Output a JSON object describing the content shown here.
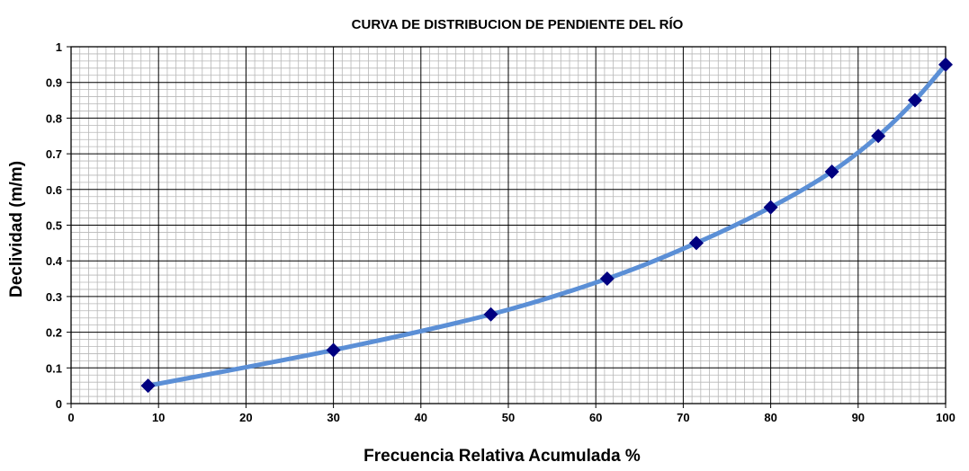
{
  "chart_data": {
    "type": "line",
    "title": "CURVA DE DISTRIBUCION DE PENDIENTE DEL RÍO",
    "xlabel": "Frecuencia Relativa Acumulada %",
    "ylabel": "Declividad (m/m)",
    "xlim": [
      0,
      100
    ],
    "ylim": [
      0,
      1
    ],
    "xticks": [
      0,
      10,
      20,
      30,
      40,
      50,
      60,
      70,
      80,
      90,
      100
    ],
    "yticks": [
      0,
      0.1,
      0.2,
      0.3,
      0.4,
      0.5,
      0.6,
      0.7,
      0.8,
      0.9,
      1
    ],
    "xtick_labels": [
      "0",
      "10",
      "20",
      "30",
      "40",
      "50",
      "60",
      "70",
      "80",
      "90",
      "100"
    ],
    "ytick_labels": [
      "0",
      "0.1",
      "0.2",
      "0.3",
      "0.4",
      "0.5",
      "0.6",
      "0.7",
      "0.8",
      "0.9",
      "1"
    ],
    "grid": true,
    "legend": "none",
    "series": [
      {
        "x": [
          8.8,
          30.0,
          48.0,
          61.3,
          71.5,
          80.0,
          87.0,
          92.3,
          96.5,
          100.0
        ],
        "y": [
          0.05,
          0.15,
          0.25,
          0.35,
          0.45,
          0.55,
          0.65,
          0.75,
          0.85,
          0.95
        ],
        "line_color": "#5B8FD6",
        "marker": "diamond",
        "marker_color": "#000080"
      }
    ]
  }
}
